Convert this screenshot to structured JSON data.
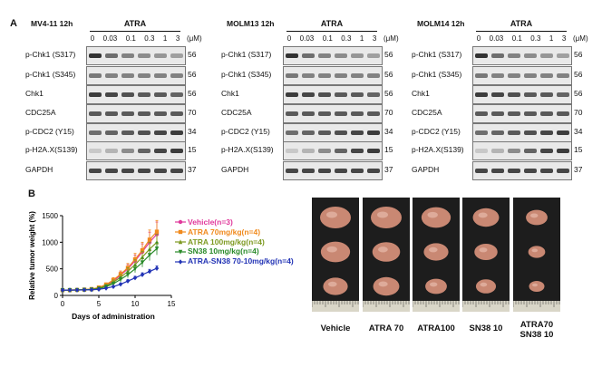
{
  "panel_a_label": "A",
  "panel_b_label": "B",
  "western_panels": [
    {
      "title": "MV4-11  12h",
      "treatment": "ATRA",
      "concentrations": [
        "0",
        "0.03",
        "0.1",
        "0.3",
        "1",
        "3"
      ],
      "units": "(μM)",
      "rows": [
        {
          "label": "p-Chk1 (S317)",
          "kda": "56"
        },
        {
          "label": "p-Chk1 (S345)",
          "kda": "56"
        },
        {
          "label": "Chk1",
          "kda": "56"
        },
        {
          "label": "CDC25A",
          "kda": "70"
        },
        {
          "label": "p-CDC2 (Y15)",
          "kda": "34"
        },
        {
          "label": "p-H2A.X(S139)",
          "kda": "15"
        },
        {
          "label": "GAPDH",
          "kda": "37"
        }
      ]
    },
    {
      "title": "MOLM13  12h",
      "treatment": "ATRA",
      "concentrations": [
        "0",
        "0.03",
        "0.1",
        "0.3",
        "1",
        "3"
      ],
      "units": "(μM)",
      "rows": [
        {
          "label": "p-Chk1 (S317)",
          "kda": "56"
        },
        {
          "label": "p-Chk1 (S345)",
          "kda": "56"
        },
        {
          "label": "Chk1",
          "kda": "56"
        },
        {
          "label": "CDC25A",
          "kda": "70"
        },
        {
          "label": "p-CDC2 (Y15)",
          "kda": "34"
        },
        {
          "label": "p-H2A.X(S139)",
          "kda": "15"
        },
        {
          "label": "GAPDH",
          "kda": "37"
        }
      ]
    },
    {
      "title": "MOLM14  12h",
      "treatment": "ATRA",
      "concentrations": [
        "0",
        "0.03",
        "0.1",
        "0.3",
        "1",
        "3"
      ],
      "units": "(μM)",
      "rows": [
        {
          "label": "p-Chk1 (S317)",
          "kda": "56"
        },
        {
          "label": "p-Chk1 (S345)",
          "kda": "56"
        },
        {
          "label": "Chk1",
          "kda": "56"
        },
        {
          "label": "CDC25A",
          "kda": "70"
        },
        {
          "label": "p-CDC2 (Y15)",
          "kda": "34"
        },
        {
          "label": "p-H2A.X(S139)",
          "kda": "15"
        },
        {
          "label": "GAPDH",
          "kda": "37"
        }
      ]
    }
  ],
  "chart_data": {
    "type": "line",
    "xlabel": "Days of administration",
    "ylabel": "Relative tumor weight (%)",
    "xlim": [
      0,
      15
    ],
    "ylim": [
      0,
      1500
    ],
    "xticks": [
      0,
      5,
      10,
      15
    ],
    "yticks": [
      0,
      500,
      1000,
      1500
    ],
    "x": [
      0,
      1,
      2,
      3,
      4,
      5,
      6,
      7,
      8,
      9,
      10,
      11,
      12,
      13
    ],
    "series": [
      {
        "name": "Vehicle(n=3)",
        "color": "#e0389b",
        "marker": "circle",
        "values": [
          100,
          100,
          105,
          110,
          118,
          140,
          190,
          270,
          380,
          500,
          650,
          820,
          1000,
          1150
        ],
        "errors": [
          0,
          5,
          8,
          10,
          12,
          18,
          30,
          45,
          60,
          80,
          110,
          150,
          190,
          230
        ]
      },
      {
        "name": "ATRA 70mg/kg(n=4)",
        "color": "#f08a1d",
        "marker": "square",
        "values": [
          100,
          100,
          104,
          110,
          120,
          150,
          205,
          290,
          400,
          520,
          680,
          850,
          1050,
          1200
        ],
        "errors": [
          0,
          5,
          8,
          10,
          12,
          18,
          30,
          45,
          60,
          80,
          110,
          150,
          180,
          210
        ]
      },
      {
        "name": "ATRA 100mg/kg(n=4)",
        "color": "#7e9a22",
        "marker": "triangle",
        "values": [
          100,
          100,
          103,
          108,
          115,
          135,
          180,
          250,
          340,
          450,
          580,
          720,
          870,
          1000
        ],
        "errors": [
          0,
          5,
          7,
          9,
          11,
          16,
          25,
          40,
          55,
          70,
          90,
          110,
          130,
          150
        ]
      },
      {
        "name": "SN38 10mg/kg(n=4)",
        "color": "#2a8a2a",
        "marker": "triangle-down",
        "values": [
          100,
          100,
          102,
          106,
          112,
          128,
          165,
          220,
          300,
          390,
          500,
          620,
          760,
          880
        ],
        "errors": [
          0,
          5,
          6,
          8,
          10,
          14,
          20,
          32,
          45,
          58,
          72,
          88,
          105,
          120
        ]
      },
      {
        "name": "ATRA-SN38 70-10mg/kg(n=4)",
        "color": "#2233b5",
        "marker": "diamond",
        "values": [
          100,
          100,
          101,
          103,
          106,
          115,
          135,
          165,
          210,
          270,
          330,
          390,
          450,
          510
        ],
        "errors": [
          0,
          4,
          5,
          6,
          7,
          9,
          12,
          16,
          20,
          25,
          30,
          35,
          40,
          45
        ]
      }
    ]
  },
  "tumor_photo_labels": [
    [
      "Vehicle"
    ],
    [
      "ATRA 70"
    ],
    [
      "ATRA100"
    ],
    [
      "SN38 10"
    ],
    [
      "ATRA70",
      "SN38 10"
    ]
  ],
  "colors": {
    "blot_bg": "#e9e9e9",
    "photo_bg": "#1d1d1d",
    "tumor": "#c98873"
  }
}
